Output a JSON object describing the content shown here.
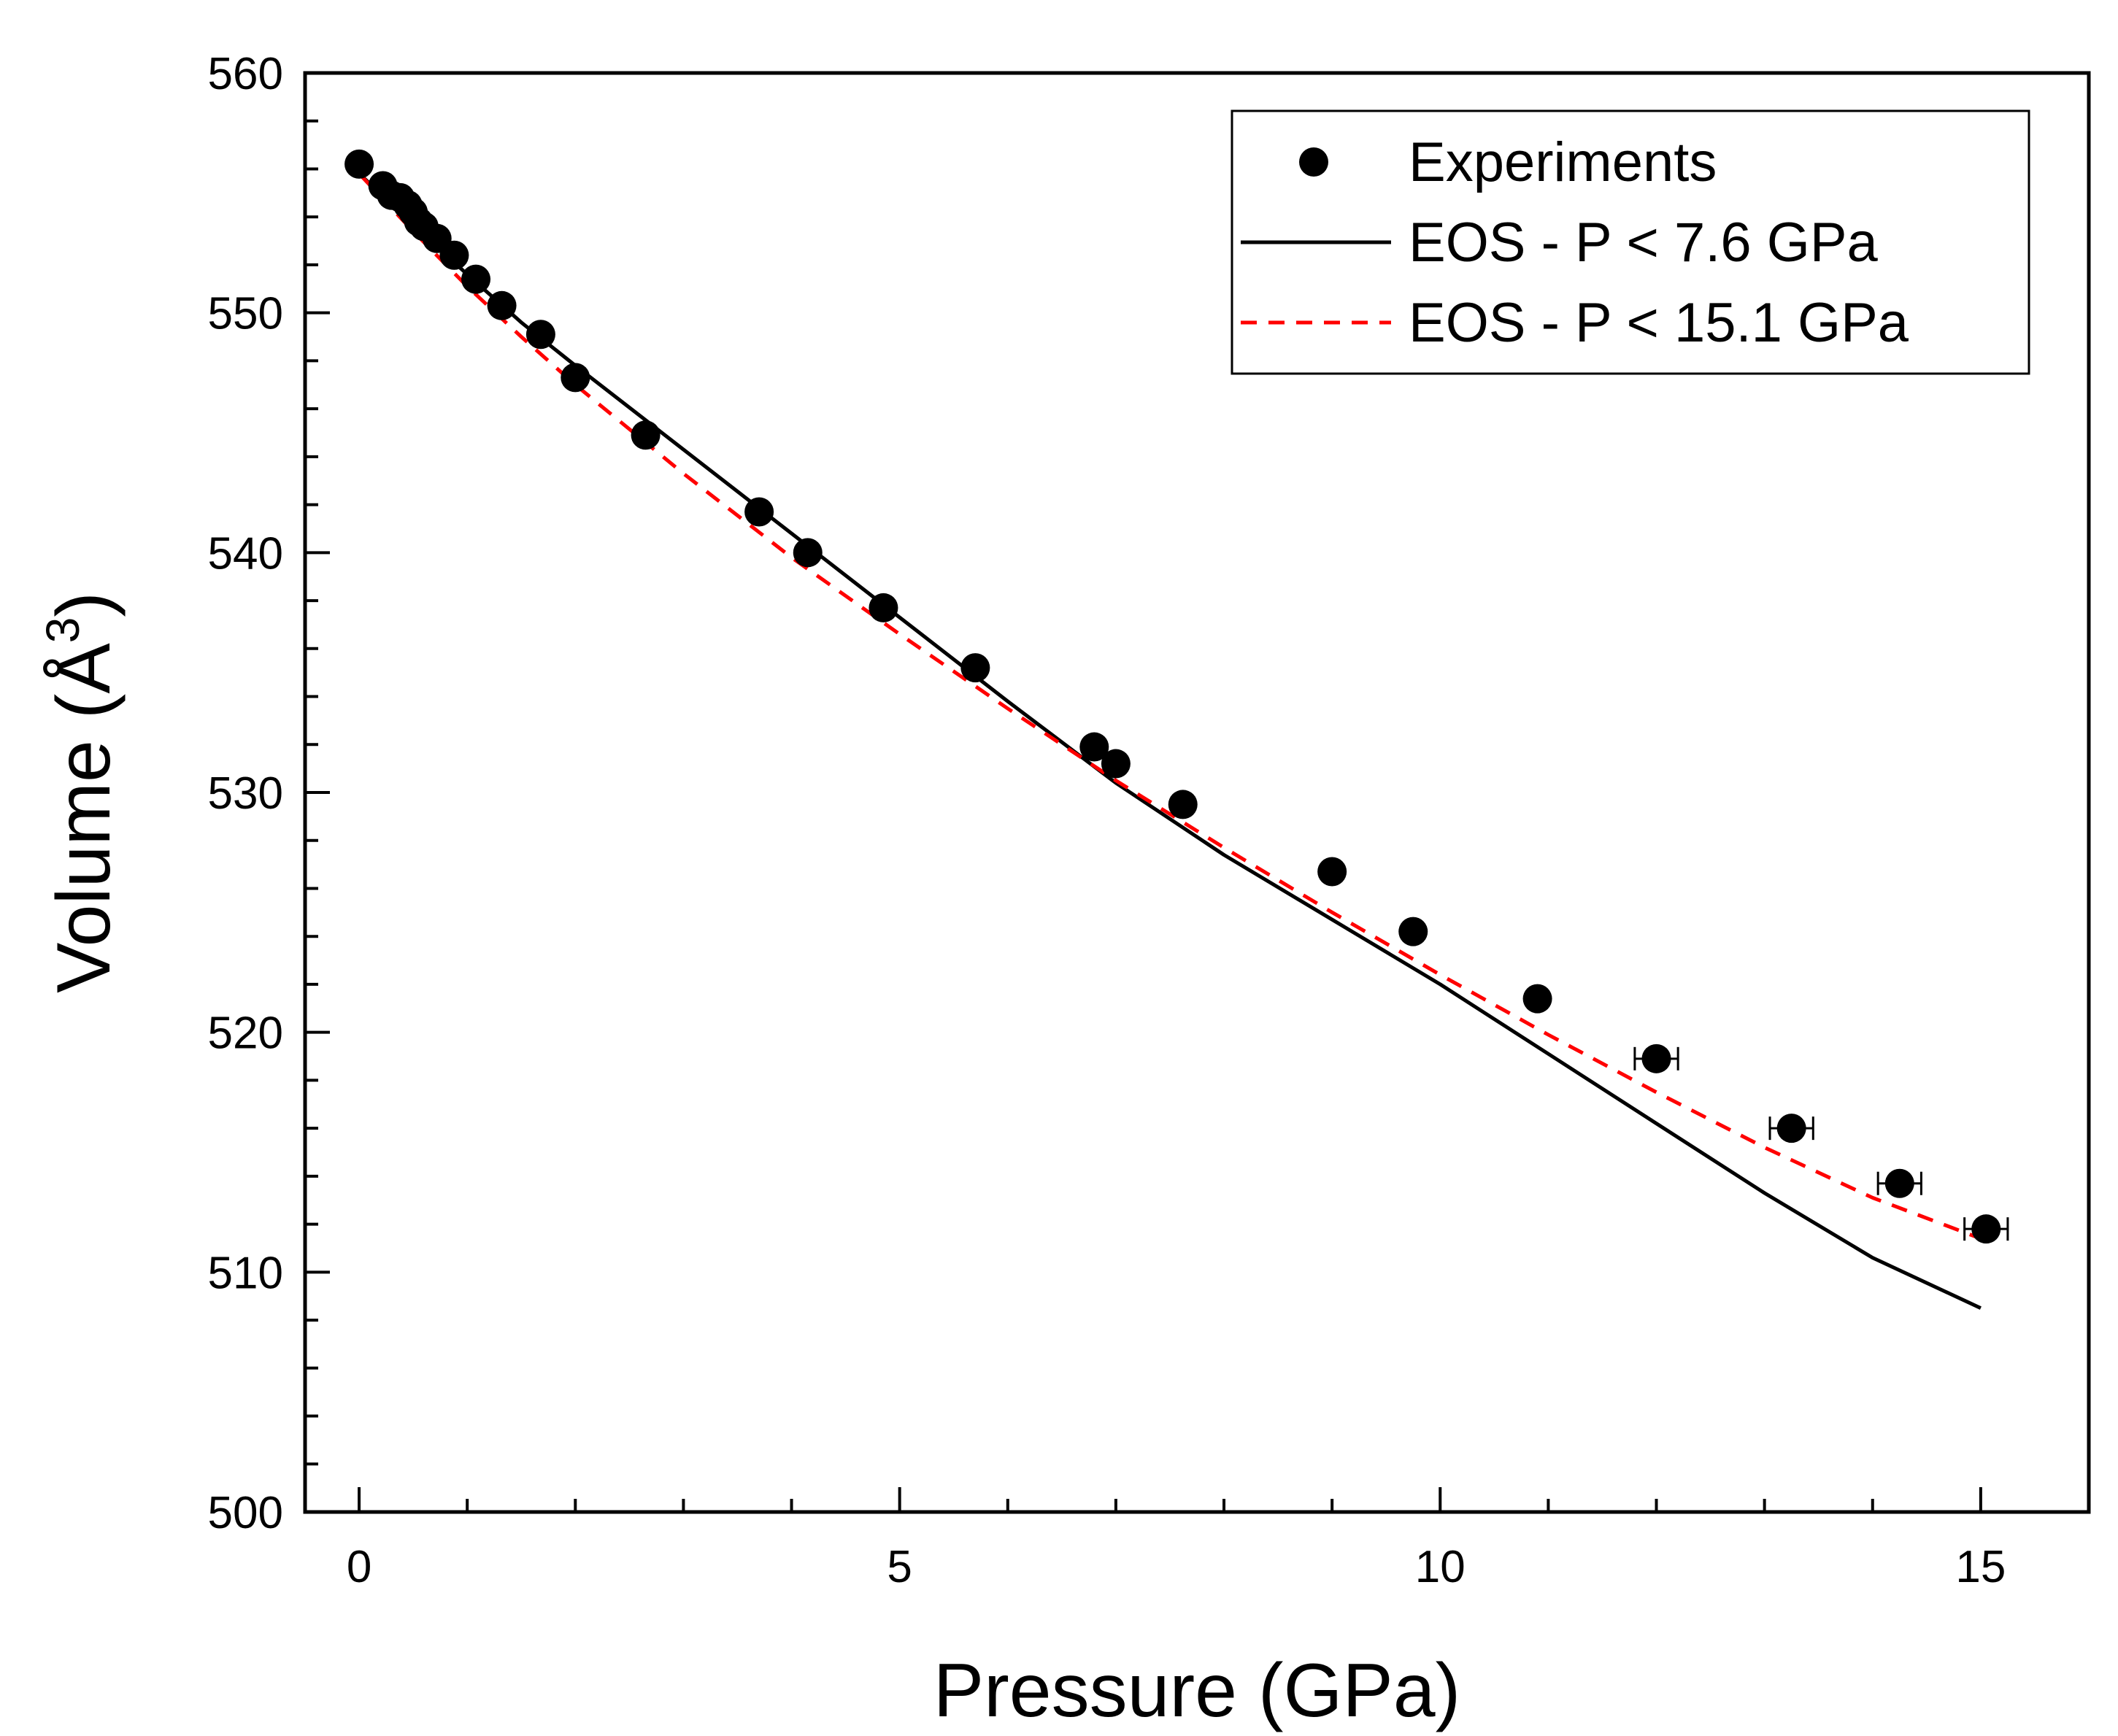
{
  "chart_data": {
    "type": "scatter",
    "xlabel": "Pressure (GPa)",
    "ylabel_prefix": "Volume (Å",
    "ylabel_superscript": "3",
    "ylabel_suffix": ")",
    "xlim": [
      -0.5,
      16
    ],
    "ylim": [
      500,
      560
    ],
    "x_ticks": [
      0,
      5,
      10,
      15
    ],
    "x_tick_labels": [
      "0",
      "5",
      "10",
      "15"
    ],
    "y_ticks": [
      500,
      510,
      520,
      530,
      540,
      550,
      560
    ],
    "y_tick_labels": [
      "500",
      "510",
      "520",
      "530",
      "540",
      "550",
      "560"
    ],
    "legend_position": "top-right",
    "series": [
      {
        "name": "Experiments",
        "kind": "scatter",
        "color": "#000000",
        "points": [
          {
            "x": 0.0,
            "y": 556.2,
            "xerr": 0
          },
          {
            "x": 0.22,
            "y": 555.3,
            "xerr": 0
          },
          {
            "x": 0.3,
            "y": 554.9,
            "xerr": 0
          },
          {
            "x": 0.38,
            "y": 554.8,
            "xerr": 0
          },
          {
            "x": 0.45,
            "y": 554.5,
            "xerr": 0
          },
          {
            "x": 0.5,
            "y": 554.2,
            "xerr": 0
          },
          {
            "x": 0.55,
            "y": 553.8,
            "xerr": 0
          },
          {
            "x": 0.6,
            "y": 553.6,
            "xerr": 0
          },
          {
            "x": 0.72,
            "y": 553.1,
            "xerr": 0
          },
          {
            "x": 0.88,
            "y": 552.4,
            "xerr": 0
          },
          {
            "x": 1.08,
            "y": 551.4,
            "xerr": 0
          },
          {
            "x": 1.32,
            "y": 550.3,
            "xerr": 0
          },
          {
            "x": 1.68,
            "y": 549.1,
            "xerr": 0
          },
          {
            "x": 2.0,
            "y": 547.3,
            "xerr": 0
          },
          {
            "x": 2.65,
            "y": 544.9,
            "xerr": 0
          },
          {
            "x": 3.7,
            "y": 541.7,
            "xerr": 0
          },
          {
            "x": 4.15,
            "y": 540.0,
            "xerr": 0
          },
          {
            "x": 4.85,
            "y": 537.7,
            "xerr": 0
          },
          {
            "x": 5.7,
            "y": 535.2,
            "xerr": 0
          },
          {
            "x": 6.8,
            "y": 531.9,
            "xerr": 0
          },
          {
            "x": 7.0,
            "y": 531.2,
            "xerr": 0
          },
          {
            "x": 7.62,
            "y": 529.5,
            "xerr": 0
          },
          {
            "x": 9.0,
            "y": 526.7,
            "xerr": 0
          },
          {
            "x": 9.75,
            "y": 524.2,
            "xerr": 0
          },
          {
            "x": 10.9,
            "y": 521.4,
            "xerr": 0
          },
          {
            "x": 12.0,
            "y": 518.9,
            "xerr": 0.2
          },
          {
            "x": 13.25,
            "y": 516.0,
            "xerr": 0.2
          },
          {
            "x": 14.25,
            "y": 513.7,
            "xerr": 0.2
          },
          {
            "x": 15.05,
            "y": 511.8,
            "xerr": 0.2
          }
        ]
      },
      {
        "name": "EOS - P < 7.6 GPa",
        "kind": "line",
        "style": "solid",
        "color": "#000000",
        "x": [
          0.0,
          0.5,
          1.0,
          1.5,
          2.0,
          3.0,
          4.0,
          5.0,
          6.0,
          7.0,
          8.0,
          9.0,
          10.0,
          11.0,
          12.0,
          13.0,
          14.0,
          15.0
        ],
        "y": [
          555.8,
          553.7,
          551.6,
          549.6,
          547.8,
          544.3,
          540.8,
          537.3,
          533.8,
          530.4,
          527.4,
          524.7,
          522.0,
          519.1,
          516.2,
          513.3,
          510.6,
          508.5
        ]
      },
      {
        "name": "EOS - P < 15.1 GPa",
        "kind": "line",
        "style": "dashed",
        "color": "#ff0000",
        "x": [
          0.0,
          0.5,
          1.0,
          1.5,
          2.0,
          3.0,
          4.0,
          5.0,
          6.0,
          7.0,
          8.0,
          9.0,
          10.0,
          11.0,
          12.0,
          13.0,
          14.0,
          15.0
        ],
        "y": [
          555.8,
          553.4,
          551.1,
          549.0,
          547.0,
          543.3,
          539.8,
          536.6,
          533.5,
          530.5,
          527.7,
          525.0,
          522.4,
          519.9,
          517.5,
          515.2,
          513.1,
          511.4
        ]
      }
    ]
  }
}
